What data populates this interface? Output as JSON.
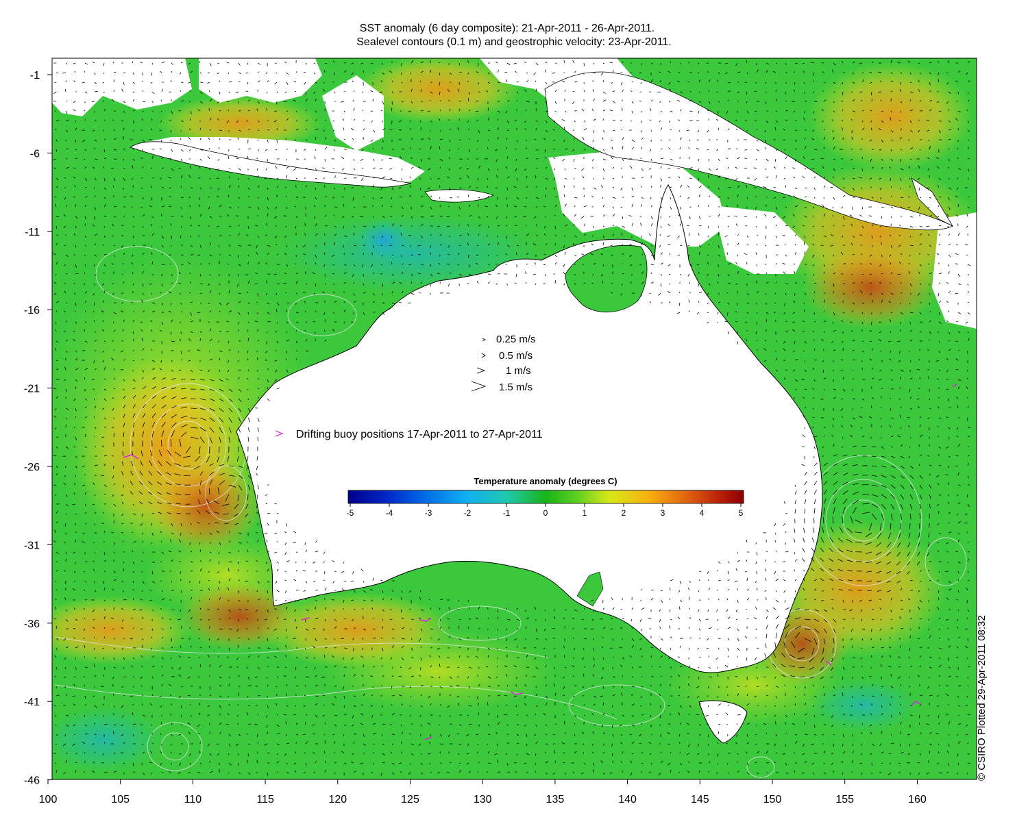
{
  "title_line1": "SST anomaly (6 day composite): 21-Apr-2011 - 26-Apr-2011.",
  "title_line2": "Sealevel contours (0.1 m) and geostrophic velocity: 23-Apr-2011.",
  "axes": {
    "x_ticks": [
      "100",
      "105",
      "110",
      "115",
      "120",
      "125",
      "130",
      "135",
      "140",
      "145",
      "150",
      "155",
      "160"
    ],
    "y_ticks": [
      "-1",
      "-6",
      "-11",
      "-16",
      "-21",
      "-26",
      "-31",
      "-36",
      "-41",
      "-46"
    ]
  },
  "velocity_legend": [
    {
      "label": "0.25 m/s",
      "speed": 0.25
    },
    {
      "label": "0.5 m/s",
      "speed": 0.5
    },
    {
      "label": "1 m/s",
      "speed": 1
    },
    {
      "label": "1.5 m/s",
      "speed": 1.5
    }
  ],
  "buoy_legend": {
    "label": "Drifting buoy positions 17-Apr-2011 to 27-Apr-2011",
    "color": "#e020e0"
  },
  "colorbar": {
    "title": "Temperature anomaly (degrees C)",
    "ticks": [
      "-5",
      "-4",
      "-3",
      "-2",
      "-1",
      "0",
      "1",
      "2",
      "3",
      "4",
      "5"
    ],
    "range": [
      -5,
      5
    ]
  },
  "credit": "© CSIRO Plotted 29-Apr-2011 08:32",
  "colors": {
    "ocean_base": "#3cc83c",
    "warm": "#f0b020",
    "cool": "#28c8a0",
    "land": "#ffffff",
    "contour": "#e8e8f0"
  }
}
